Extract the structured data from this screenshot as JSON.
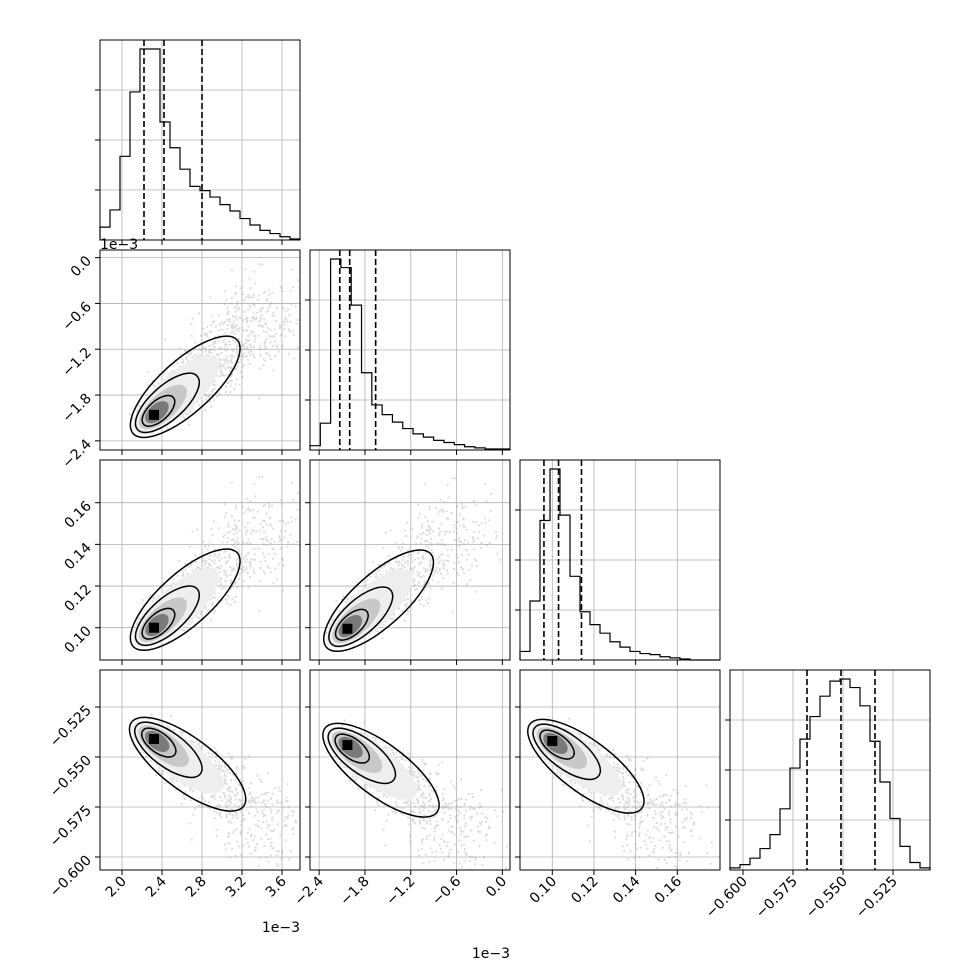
{
  "chart_data": {
    "type": "corner",
    "title": "",
    "parameters": [
      {
        "index": 0,
        "range": [
          0.00178,
          0.00378
        ],
        "ticks": [
          0.002,
          0.0024,
          0.0028,
          0.0032,
          0.0036
        ],
        "tick_labels": [
          "2.0",
          "2.4",
          "2.8",
          "3.2",
          "3.6"
        ],
        "offset_text": "1e−3"
      },
      {
        "index": 1,
        "range": [
          -0.00252,
          0.0001
        ],
        "ticks": [
          -0.0024,
          -0.0018,
          -0.0012,
          -0.0006,
          0.0
        ],
        "tick_labels": [
          "−2.4",
          "−1.8",
          "−1.2",
          "−0.6",
          "0.0"
        ],
        "offset_text": "1e−3"
      },
      {
        "index": 2,
        "range": [
          0.0845,
          0.1805
        ],
        "ticks": [
          0.1,
          0.12,
          0.14,
          0.16
        ],
        "tick_labels": [
          "0.10",
          "0.12",
          "0.14",
          "0.16"
        ],
        "offset_text": ""
      },
      {
        "index": 3,
        "range": [
          -0.6065,
          -0.5065
        ],
        "ticks": [
          -0.6,
          -0.575,
          -0.55,
          -0.525
        ],
        "tick_labels": [
          "−0.600",
          "−0.575",
          "−0.550",
          "−0.525"
        ],
        "offset_text": ""
      }
    ],
    "quantiles": [
      0.16,
      0.5,
      0.84
    ],
    "histograms": [
      {
        "param": 0,
        "quantile_values": [
          0.00222,
          0.00242,
          0.0028
        ],
        "bin_edges": [
          0.00178,
          0.00188,
          0.00198,
          0.00208,
          0.00218,
          0.00228,
          0.00238,
          0.00248,
          0.00258,
          0.00268,
          0.00278,
          0.00288,
          0.00298,
          0.00308,
          0.00318,
          0.00328,
          0.00338,
          0.00348,
          0.00358,
          0.00368,
          0.00378
        ],
        "counts": [
          12,
          28,
          78,
          138,
          178,
          178,
          110,
          86,
          66,
          50,
          46,
          40,
          33,
          27,
          20,
          14,
          9,
          6,
          3,
          1
        ]
      },
      {
        "param": 1,
        "quantile_values": [
          -0.00213,
          -0.002,
          -0.00166
        ],
        "bin_edges": [
          -0.00252,
          -0.002385,
          -0.00225,
          -0.002115,
          -0.00198,
          -0.001845,
          -0.00171,
          -0.001575,
          -0.00144,
          -0.001305,
          -0.00117,
          -0.001035,
          -0.0009,
          -0.000765,
          -0.00063,
          -0.000495,
          -0.00036,
          -0.000225,
          -9e-05,
          0.0001
        ],
        "counts": [
          4,
          25,
          178,
          170,
          135,
          72,
          42,
          33,
          26,
          20,
          15,
          12,
          9,
          7,
          5,
          3,
          2,
          1,
          1
        ]
      },
      {
        "param": 2,
        "quantile_values": [
          0.096,
          0.103,
          0.114
        ],
        "bin_edges": [
          0.0845,
          0.0893,
          0.0941,
          0.0989,
          0.1037,
          0.1085,
          0.1133,
          0.1181,
          0.1229,
          0.1277,
          0.1325,
          0.1373,
          0.1421,
          0.1469,
          0.1517,
          0.1565,
          0.1613,
          0.1661,
          0.1709,
          0.1757,
          0.1805
        ],
        "counts": [
          8,
          55,
          130,
          178,
          135,
          78,
          45,
          33,
          25,
          17,
          12,
          8,
          6,
          5,
          3,
          2,
          1,
          0,
          0,
          0
        ]
      },
      {
        "param": 3,
        "quantile_values": [
          -0.568,
          -0.551,
          -0.534
        ],
        "bin_edges": [
          -0.6065,
          -0.6015,
          -0.5965,
          -0.5915,
          -0.5865,
          -0.5815,
          -0.5765,
          -0.5715,
          -0.5665,
          -0.5615,
          -0.5565,
          -0.5515,
          -0.5465,
          -0.5415,
          -0.5365,
          -0.5315,
          -0.5265,
          -0.5215,
          -0.5165,
          -0.5115,
          -0.5065
        ],
        "counts": [
          2,
          5,
          11,
          20,
          33,
          57,
          95,
          122,
          143,
          162,
          176,
          178,
          170,
          153,
          120,
          82,
          48,
          22,
          7,
          2
        ]
      }
    ],
    "pairs": [
      {
        "x": 0,
        "y": 1,
        "peak": [
          0.00232,
          -0.00206
        ],
        "contour_levels": 3,
        "correlation": "positive"
      },
      {
        "x": 0,
        "y": 2,
        "peak": [
          0.00232,
          0.1
        ],
        "contour_levels": 3,
        "correlation": "positive"
      },
      {
        "x": 1,
        "y": 2,
        "peak": [
          -0.00203,
          0.0995
        ],
        "contour_levels": 3,
        "correlation": "positive"
      },
      {
        "x": 0,
        "y": 3,
        "peak": [
          0.00232,
          -0.541
        ],
        "contour_levels": 3,
        "correlation": "negative"
      },
      {
        "x": 1,
        "y": 3,
        "peak": [
          -0.00203,
          -0.544
        ],
        "contour_levels": 3,
        "correlation": "negative"
      },
      {
        "x": 2,
        "y": 3,
        "peak": [
          0.1,
          -0.542
        ],
        "contour_levels": 3,
        "correlation": "negative"
      }
    ],
    "grid": true,
    "style": {
      "line_color": "#000000",
      "grid_color": "#b0b0b0",
      "point_color": "#999999"
    }
  }
}
